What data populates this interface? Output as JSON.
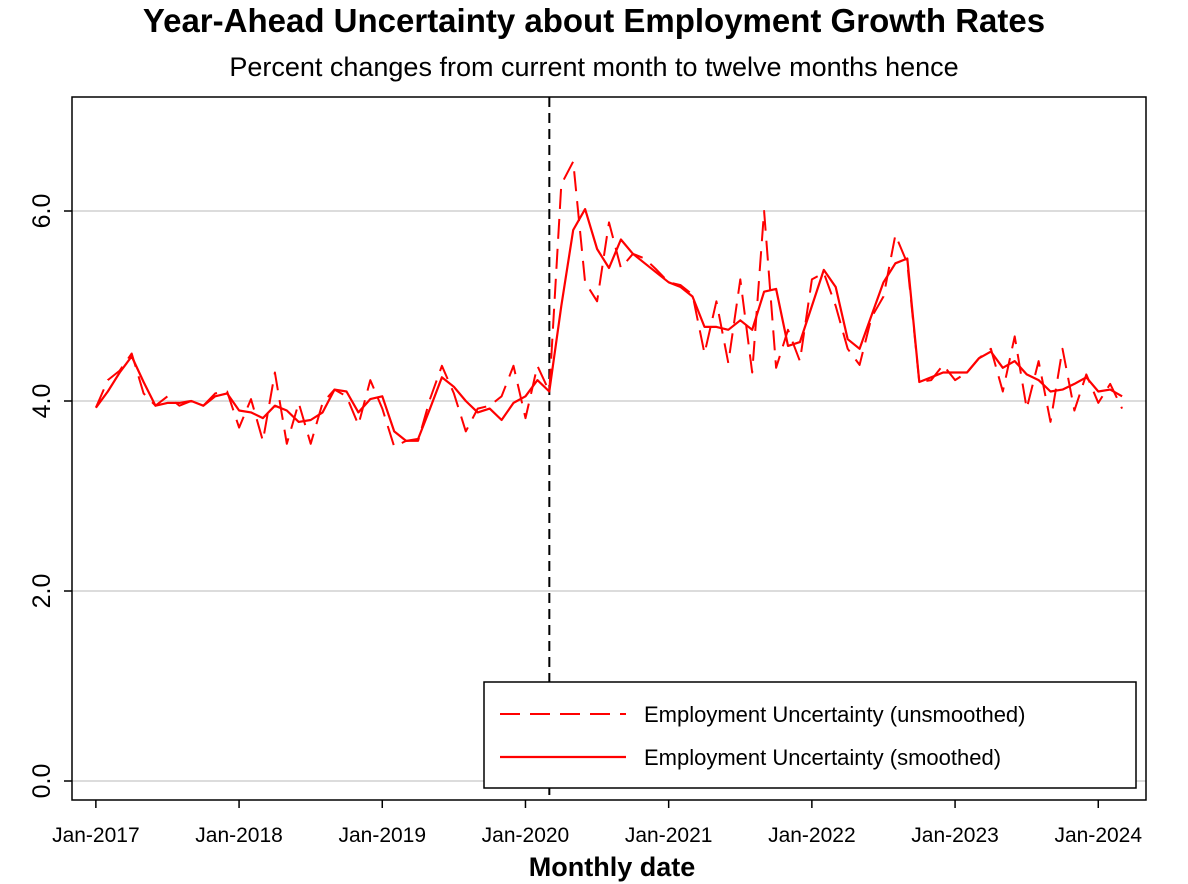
{
  "chart_data": {
    "type": "line",
    "title": "Year-Ahead Uncertainty about Employment Growth Rates",
    "subtitle": "Percent changes from current month to twelve months hence",
    "xlabel": "Monthly date",
    "ylabel": "",
    "x_ticks": [
      "Jan-2017",
      "Jan-2018",
      "Jan-2019",
      "Jan-2020",
      "Jan-2021",
      "Jan-2022",
      "Jan-2023",
      "Jan-2024"
    ],
    "y_ticks": [
      "0.0",
      "2.0",
      "4.0",
      "6.0"
    ],
    "ylim": [
      -0.2,
      7.2
    ],
    "xlim": [
      "2016-11",
      "2024-05"
    ],
    "grid": "horizontal",
    "reference_line": {
      "x": "2020-03",
      "style": "dashed",
      "color": "#000000"
    },
    "legend_position": "bottom-right",
    "x": [
      "2017-01",
      "2017-02",
      "2017-03",
      "2017-04",
      "2017-05",
      "2017-06",
      "2017-07",
      "2017-08",
      "2017-09",
      "2017-10",
      "2017-11",
      "2017-12",
      "2018-01",
      "2018-02",
      "2018-03",
      "2018-04",
      "2018-05",
      "2018-06",
      "2018-07",
      "2018-08",
      "2018-09",
      "2018-10",
      "2018-11",
      "2018-12",
      "2019-01",
      "2019-02",
      "2019-03",
      "2019-04",
      "2019-05",
      "2019-06",
      "2019-07",
      "2019-08",
      "2019-09",
      "2019-10",
      "2019-11",
      "2019-12",
      "2020-01",
      "2020-02",
      "2020-03",
      "2020-04",
      "2020-05",
      "2020-06",
      "2020-07",
      "2020-08",
      "2020-09",
      "2020-10",
      "2020-11",
      "2020-12",
      "2021-01",
      "2021-02",
      "2021-03",
      "2021-04",
      "2021-05",
      "2021-06",
      "2021-07",
      "2021-08",
      "2021-09",
      "2021-10",
      "2021-11",
      "2021-12",
      "2022-01",
      "2022-02",
      "2022-03",
      "2022-04",
      "2022-05",
      "2022-06",
      "2022-07",
      "2022-08",
      "2022-09",
      "2022-10",
      "2022-11",
      "2022-12",
      "2023-01",
      "2023-02",
      "2023-03",
      "2023-04",
      "2023-05",
      "2023-06",
      "2023-07",
      "2023-08",
      "2023-09",
      "2023-10",
      "2023-11",
      "2023-12",
      "2024-01",
      "2024-02",
      "2024-03"
    ],
    "series": [
      {
        "name": "Employment Uncertainty (unsmoothed)",
        "color": "#ff0000",
        "dash": "dashed",
        "values": [
          3.93,
          4.22,
          4.32,
          4.5,
          4.08,
          3.95,
          4.05,
          3.95,
          4.0,
          3.95,
          4.08,
          4.1,
          3.72,
          4.02,
          3.58,
          4.3,
          3.55,
          3.98,
          3.55,
          3.98,
          4.12,
          4.05,
          3.75,
          4.22,
          3.92,
          3.52,
          3.58,
          3.58,
          4.02,
          4.37,
          4.08,
          3.68,
          3.92,
          3.95,
          4.05,
          4.37,
          3.82,
          4.37,
          4.1,
          6.28,
          6.52,
          5.25,
          5.05,
          5.88,
          5.4,
          5.55,
          5.5,
          5.38,
          5.25,
          5.22,
          5.12,
          4.5,
          5.05,
          4.4,
          5.28,
          4.3,
          6.0,
          4.35,
          4.75,
          4.42,
          5.28,
          5.35,
          5.0,
          4.55,
          4.38,
          4.88,
          5.1,
          5.75,
          5.45,
          4.2,
          4.22,
          4.38,
          4.22,
          4.3,
          4.45,
          4.55,
          4.1,
          4.68,
          3.92,
          4.42,
          3.78,
          4.55,
          3.9,
          4.28,
          3.98,
          4.18,
          3.92
        ]
      },
      {
        "name": "Employment Uncertainty (smoothed)",
        "color": "#ff0000",
        "dash": "solid",
        "values": [
          3.93,
          4.1,
          4.3,
          4.47,
          4.2,
          3.95,
          3.98,
          3.98,
          4.0,
          3.95,
          4.05,
          4.08,
          3.9,
          3.88,
          3.82,
          3.95,
          3.9,
          3.78,
          3.8,
          3.88,
          4.12,
          4.1,
          3.88,
          4.02,
          4.05,
          3.68,
          3.58,
          3.6,
          3.92,
          4.25,
          4.15,
          4.0,
          3.88,
          3.92,
          3.8,
          3.98,
          4.05,
          4.22,
          4.1,
          5.0,
          5.8,
          6.02,
          5.6,
          5.4,
          5.7,
          5.55,
          5.45,
          5.35,
          5.25,
          5.2,
          5.1,
          4.78,
          4.78,
          4.75,
          4.85,
          4.75,
          5.15,
          5.18,
          4.58,
          4.62,
          5.0,
          5.38,
          5.2,
          4.65,
          4.55,
          4.9,
          5.25,
          5.45,
          5.5,
          4.2,
          4.25,
          4.3,
          4.3,
          4.3,
          4.45,
          4.52,
          4.35,
          4.42,
          4.28,
          4.22,
          4.1,
          4.12,
          4.18,
          4.25,
          4.1,
          4.12,
          4.05
        ]
      }
    ]
  }
}
